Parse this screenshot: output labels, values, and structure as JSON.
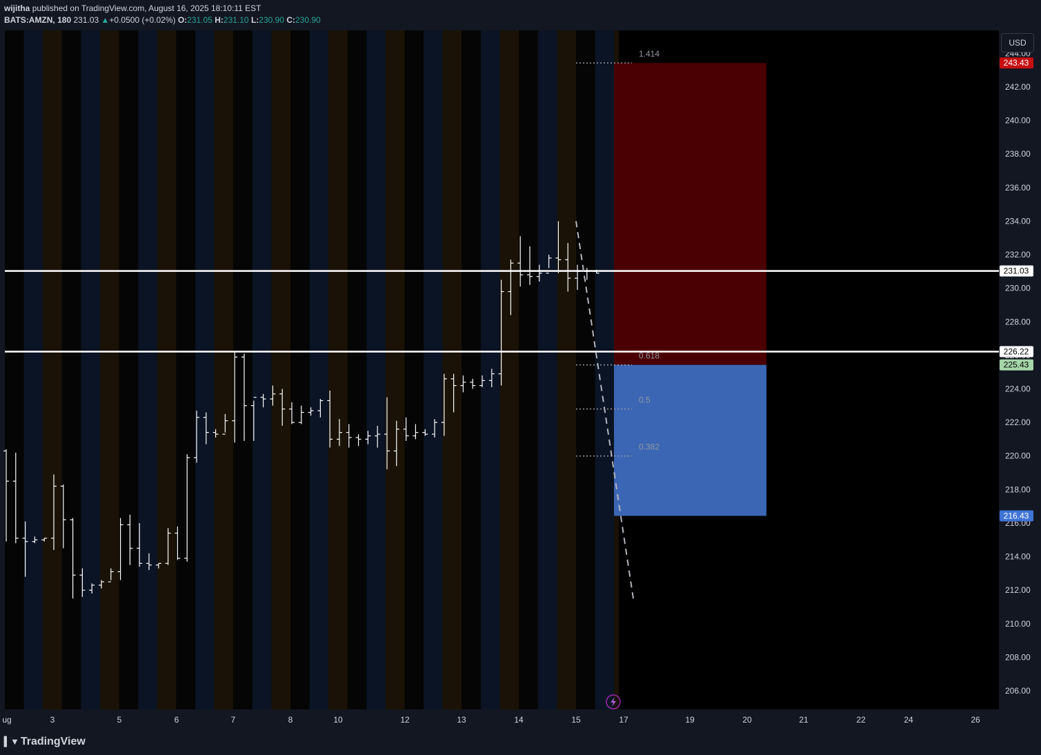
{
  "header": {
    "author": "wijitha",
    "published_text": "published on TradingView.com, August 16, 2025 18:10:11 EST",
    "symbol": "BATS:AMZN, 180",
    "last": "231.03",
    "change_arrow": "▲",
    "change": "+0.0500 (+0.02%)",
    "open_label": "O:",
    "open": "231.05",
    "high_label": "H:",
    "high": "231.10",
    "low_label": "L:",
    "low": "230.90",
    "close_label": "C:",
    "close": "230.90"
  },
  "currency_button": "USD",
  "footer": {
    "brand": "TradingView",
    "logo_icon": "tradingview-logo-icon"
  },
  "colors": {
    "background": "#000000",
    "panel": "#131722",
    "band_blue": "#0b1424",
    "band_orange": "#1a1206",
    "stop_zone": "#4a0003",
    "target_zone": "#3a66b4",
    "price_red": "#c70f12",
    "price_green": "#a5d6a7",
    "price_blue": "#3f73d4",
    "fib_dots": "#9598a1",
    "fib_label": "#9598a1"
  },
  "price_labels": [
    {
      "value": "243.43",
      "kind": "stop",
      "color": "#c70f12",
      "text_color": "#ffffff"
    },
    {
      "value": "231.03",
      "kind": "last",
      "color": "#ffffff",
      "text_color": "#000000"
    },
    {
      "value": "226.22",
      "kind": "level",
      "color": "#ffffff",
      "text_color": "#000000"
    },
    {
      "value": "225.43",
      "kind": "entry",
      "color": "#a5d6a7",
      "text_color": "#000000"
    },
    {
      "value": "216.43",
      "kind": "target",
      "color": "#3f73d4",
      "text_color": "#ffffff"
    }
  ],
  "chart_data": {
    "type": "ohlc",
    "title": "BATS:AMZN, 180",
    "y_ticks": [
      "206.00",
      "208.00",
      "210.00",
      "212.00",
      "214.00",
      "216.00",
      "218.00",
      "220.00",
      "222.00",
      "224.00",
      "226.00",
      "228.00",
      "230.00",
      "232.00",
      "234.00",
      "236.00",
      "238.00",
      "240.00",
      "242.00",
      "244.00"
    ],
    "x_ticks": [
      "ug",
      "3",
      "5",
      "6",
      "7",
      "8",
      "10",
      "12",
      "13",
      "14",
      "15",
      "17",
      "19",
      "20",
      "21",
      "22",
      "24",
      "26"
    ],
    "y_range": [
      204.8,
      245.2
    ],
    "horizontal_levels": [
      231.03,
      226.22
    ],
    "position": {
      "stop": 243.43,
      "entry": 225.43,
      "target": 216.43,
      "start_day": 16.6,
      "end_day": 20.3
    },
    "fib_levels": [
      {
        "label": "1.414",
        "price": 243.43
      },
      {
        "label": "0.618",
        "price": 225.43
      },
      {
        "label": "0.5",
        "price": 222.8
      },
      {
        "label": "0.382",
        "price": 220.0
      }
    ],
    "trend_line": {
      "from_price": 234.0,
      "to_price": 211.5
    },
    "bars": [
      [
        220.3,
        220.4,
        214.9,
        218.5
      ],
      [
        218.5,
        220.2,
        214.8,
        215.1
      ],
      [
        215.1,
        216.1,
        212.8,
        214.9
      ],
      [
        214.9,
        215.2,
        214.8,
        215.0
      ],
      [
        215.0,
        215.1,
        214.9,
        215.1
      ],
      [
        215.1,
        218.9,
        214.4,
        218.2
      ],
      [
        218.2,
        218.3,
        214.5,
        216.2
      ],
      [
        216.2,
        216.3,
        211.5,
        212.9
      ],
      [
        212.9,
        213.3,
        211.6,
        212.0
      ],
      [
        212.0,
        212.4,
        211.8,
        212.3
      ],
      [
        212.3,
        212.6,
        212.1,
        212.5
      ],
      [
        212.5,
        213.3,
        212.6,
        213.1
      ],
      [
        213.1,
        216.3,
        212.6,
        215.9
      ],
      [
        215.9,
        216.5,
        213.5,
        214.5
      ],
      [
        214.5,
        216.0,
        213.4,
        213.6
      ],
      [
        213.6,
        214.2,
        213.2,
        213.5
      ],
      [
        213.5,
        213.6,
        213.3,
        213.6
      ],
      [
        213.6,
        215.7,
        213.5,
        215.4
      ],
      [
        215.4,
        215.8,
        213.8,
        213.9
      ],
      [
        213.9,
        220.1,
        213.7,
        219.9
      ],
      [
        219.9,
        222.7,
        219.6,
        222.3
      ],
      [
        222.3,
        222.6,
        220.7,
        221.4
      ],
      [
        221.4,
        221.6,
        221.1,
        221.3
      ],
      [
        221.3,
        222.5,
        221.4,
        222.1
      ],
      [
        222.1,
        226.2,
        220.8,
        225.9
      ],
      [
        225.9,
        226.1,
        220.9,
        223.0
      ],
      [
        223.0,
        223.3,
        220.9,
        223.5
      ],
      [
        223.5,
        223.7,
        222.9,
        223.4
      ],
      [
        223.4,
        224.2,
        223.0,
        223.7
      ],
      [
        223.7,
        224.0,
        221.8,
        222.8
      ],
      [
        222.8,
        223.2,
        221.9,
        222.0
      ],
      [
        222.0,
        223.0,
        221.9,
        222.6
      ],
      [
        222.6,
        222.9,
        222.4,
        222.7
      ],
      [
        222.7,
        223.4,
        222.3,
        223.3
      ],
      [
        223.3,
        223.9,
        220.5,
        221.0
      ],
      [
        221.0,
        222.2,
        220.6,
        221.4
      ],
      [
        221.4,
        221.9,
        220.5,
        221.1
      ],
      [
        221.1,
        221.3,
        220.6,
        221.0
      ],
      [
        221.0,
        221.5,
        220.7,
        221.2
      ],
      [
        221.2,
        221.8,
        220.5,
        221.3
      ],
      [
        221.3,
        223.5,
        219.2,
        220.3
      ],
      [
        220.3,
        222.1,
        219.4,
        221.6
      ],
      [
        221.6,
        222.3,
        220.9,
        221.2
      ],
      [
        221.2,
        221.9,
        221.0,
        221.4
      ],
      [
        221.4,
        221.6,
        221.2,
        221.3
      ],
      [
        221.3,
        222.2,
        221.1,
        222.0
      ],
      [
        222.0,
        224.9,
        221.2,
        224.6
      ],
      [
        224.6,
        224.9,
        222.6,
        224.2
      ],
      [
        224.2,
        224.8,
        223.8,
        224.4
      ],
      [
        224.4,
        224.6,
        224.0,
        224.2
      ],
      [
        224.2,
        224.8,
        224.1,
        224.5
      ],
      [
        224.5,
        225.2,
        224.1,
        224.9
      ],
      [
        224.9,
        230.5,
        224.2,
        229.8
      ],
      [
        229.8,
        231.7,
        228.4,
        231.5
      ],
      [
        231.5,
        233.1,
        230.1,
        230.8
      ],
      [
        230.8,
        232.5,
        230.2,
        230.7
      ],
      [
        230.7,
        231.4,
        230.4,
        230.9
      ],
      [
        230.9,
        232.0,
        231.2,
        231.8
      ],
      [
        231.8,
        234.0,
        230.9,
        231.7
      ],
      [
        231.7,
        232.7,
        229.8,
        230.6
      ],
      [
        230.6,
        231.4,
        229.9,
        231.0
      ],
      [
        231.0,
        231.2,
        230.5,
        231.0
      ],
      [
        231.0,
        231.1,
        230.9,
        230.9
      ]
    ]
  }
}
